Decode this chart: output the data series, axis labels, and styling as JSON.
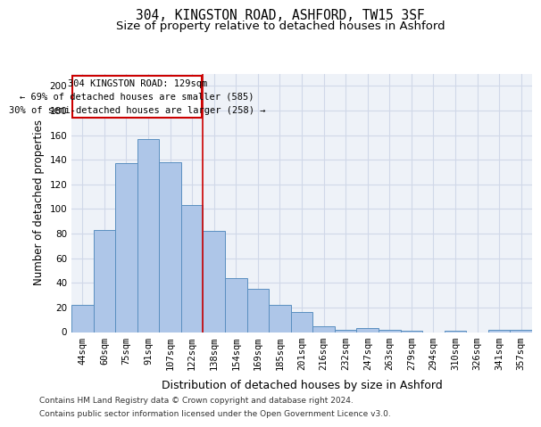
{
  "title1": "304, KINGSTON ROAD, ASHFORD, TW15 3SF",
  "title2": "Size of property relative to detached houses in Ashford",
  "xlabel": "Distribution of detached houses by size in Ashford",
  "ylabel": "Number of detached properties",
  "categories": [
    "44sqm",
    "60sqm",
    "75sqm",
    "91sqm",
    "107sqm",
    "122sqm",
    "138sqm",
    "154sqm",
    "169sqm",
    "185sqm",
    "201sqm",
    "216sqm",
    "232sqm",
    "247sqm",
    "263sqm",
    "279sqm",
    "294sqm",
    "310sqm",
    "326sqm",
    "341sqm",
    "357sqm"
  ],
  "values": [
    22,
    83,
    137,
    157,
    138,
    103,
    82,
    44,
    35,
    22,
    16,
    5,
    2,
    3,
    2,
    1,
    0,
    1,
    0,
    2,
    2
  ],
  "bar_color": "#aec6e8",
  "bar_edge_color": "#5a8fc0",
  "grid_color": "#d0d8e8",
  "background_color": "#eef2f8",
  "vline_x": 5.5,
  "vline_color": "#cc0000",
  "annotation_box_text": "304 KINGSTON ROAD: 129sqm\n← 69% of detached houses are smaller (585)\n30% of semi-detached houses are larger (258) →",
  "annotation_box_color": "#cc0000",
  "ylim": [
    0,
    210
  ],
  "yticks": [
    0,
    20,
    40,
    60,
    80,
    100,
    120,
    140,
    160,
    180,
    200
  ],
  "footer1": "Contains HM Land Registry data © Crown copyright and database right 2024.",
  "footer2": "Contains public sector information licensed under the Open Government Licence v3.0.",
  "title1_fontsize": 10.5,
  "title2_fontsize": 9.5,
  "tick_fontsize": 7.5,
  "ylabel_fontsize": 8.5,
  "xlabel_fontsize": 9
}
